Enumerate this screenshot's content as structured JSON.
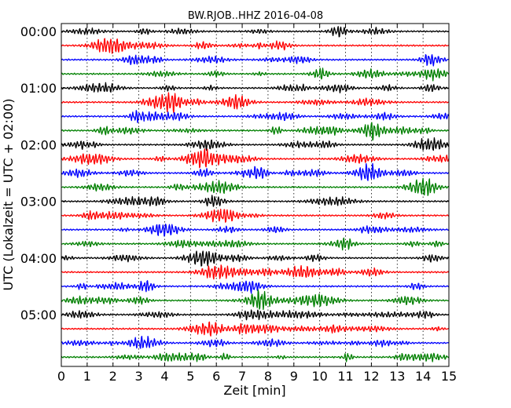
{
  "chart_data": {
    "type": "line",
    "title": "BW.RJOB..HHZ 2016-04-08",
    "xlabel": "Zeit  [min]",
    "ylabel": "UTC (Lokalzeit = UTC + 02:00)",
    "xlim": [
      0,
      15
    ],
    "x_ticks": [
      "0",
      "1",
      "2",
      "3",
      "4",
      "5",
      "6",
      "7",
      "8",
      "9",
      "10",
      "11",
      "12",
      "13",
      "14",
      "15"
    ],
    "y_ticks": [
      "00:00",
      "01:00",
      "02:00",
      "03:00",
      "04:00",
      "05:00"
    ],
    "trace_minutes": 15,
    "trace_count": 24,
    "grid": true,
    "series_colors": [
      "#000000",
      "#ff0000",
      "#0000ff",
      "#008000"
    ],
    "series": [
      {
        "start": "00:00",
        "color": "#000000"
      },
      {
        "start": "00:15",
        "color": "#ff0000"
      },
      {
        "start": "00:30",
        "color": "#0000ff"
      },
      {
        "start": "00:45",
        "color": "#008000"
      },
      {
        "start": "01:00",
        "color": "#000000"
      },
      {
        "start": "01:15",
        "color": "#ff0000"
      },
      {
        "start": "01:30",
        "color": "#0000ff"
      },
      {
        "start": "01:45",
        "color": "#008000"
      },
      {
        "start": "02:00",
        "color": "#000000"
      },
      {
        "start": "02:15",
        "color": "#ff0000"
      },
      {
        "start": "02:30",
        "color": "#0000ff"
      },
      {
        "start": "02:45",
        "color": "#008000"
      },
      {
        "start": "03:00",
        "color": "#000000"
      },
      {
        "start": "03:15",
        "color": "#ff0000"
      },
      {
        "start": "03:30",
        "color": "#0000ff"
      },
      {
        "start": "03:45",
        "color": "#008000"
      },
      {
        "start": "04:00",
        "color": "#000000"
      },
      {
        "start": "04:15",
        "color": "#ff0000"
      },
      {
        "start": "04:30",
        "color": "#0000ff"
      },
      {
        "start": "04:45",
        "color": "#008000"
      },
      {
        "start": "05:00",
        "color": "#000000"
      },
      {
        "start": "05:15",
        "color": "#ff0000"
      },
      {
        "start": "05:30",
        "color": "#0000ff"
      },
      {
        "start": "05:45",
        "color": "#008000"
      }
    ]
  }
}
